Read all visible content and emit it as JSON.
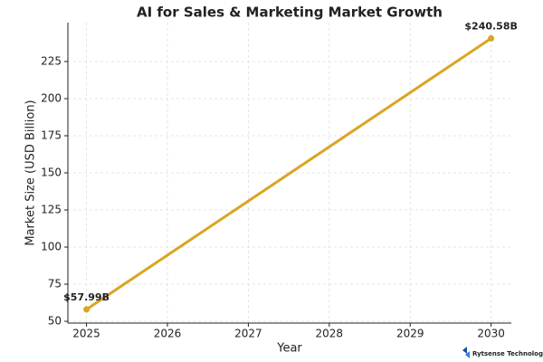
{
  "chart_data": {
    "type": "line",
    "title": "AI for Sales & Marketing Market Growth",
    "x_label": "Year",
    "y_label": "Market Size (USD Billion)",
    "x": [
      2025,
      2030
    ],
    "series": [
      {
        "name": "Market Size",
        "color": "#daa520",
        "values": [
          57.99,
          240.58
        ],
        "value_labels": [
          "$57.99B",
          "$240.58B"
        ]
      }
    ],
    "xlim": [
      2024.77,
      2030.25
    ],
    "xticks": [
      2025,
      2026,
      2027,
      2028,
      2029,
      2030
    ],
    "ylim": [
      48.8,
      251.2
    ],
    "yticks": [
      50,
      75,
      100,
      125,
      150,
      175,
      200,
      225
    ],
    "grid": true
  },
  "watermark": "Rytsense Technologies"
}
